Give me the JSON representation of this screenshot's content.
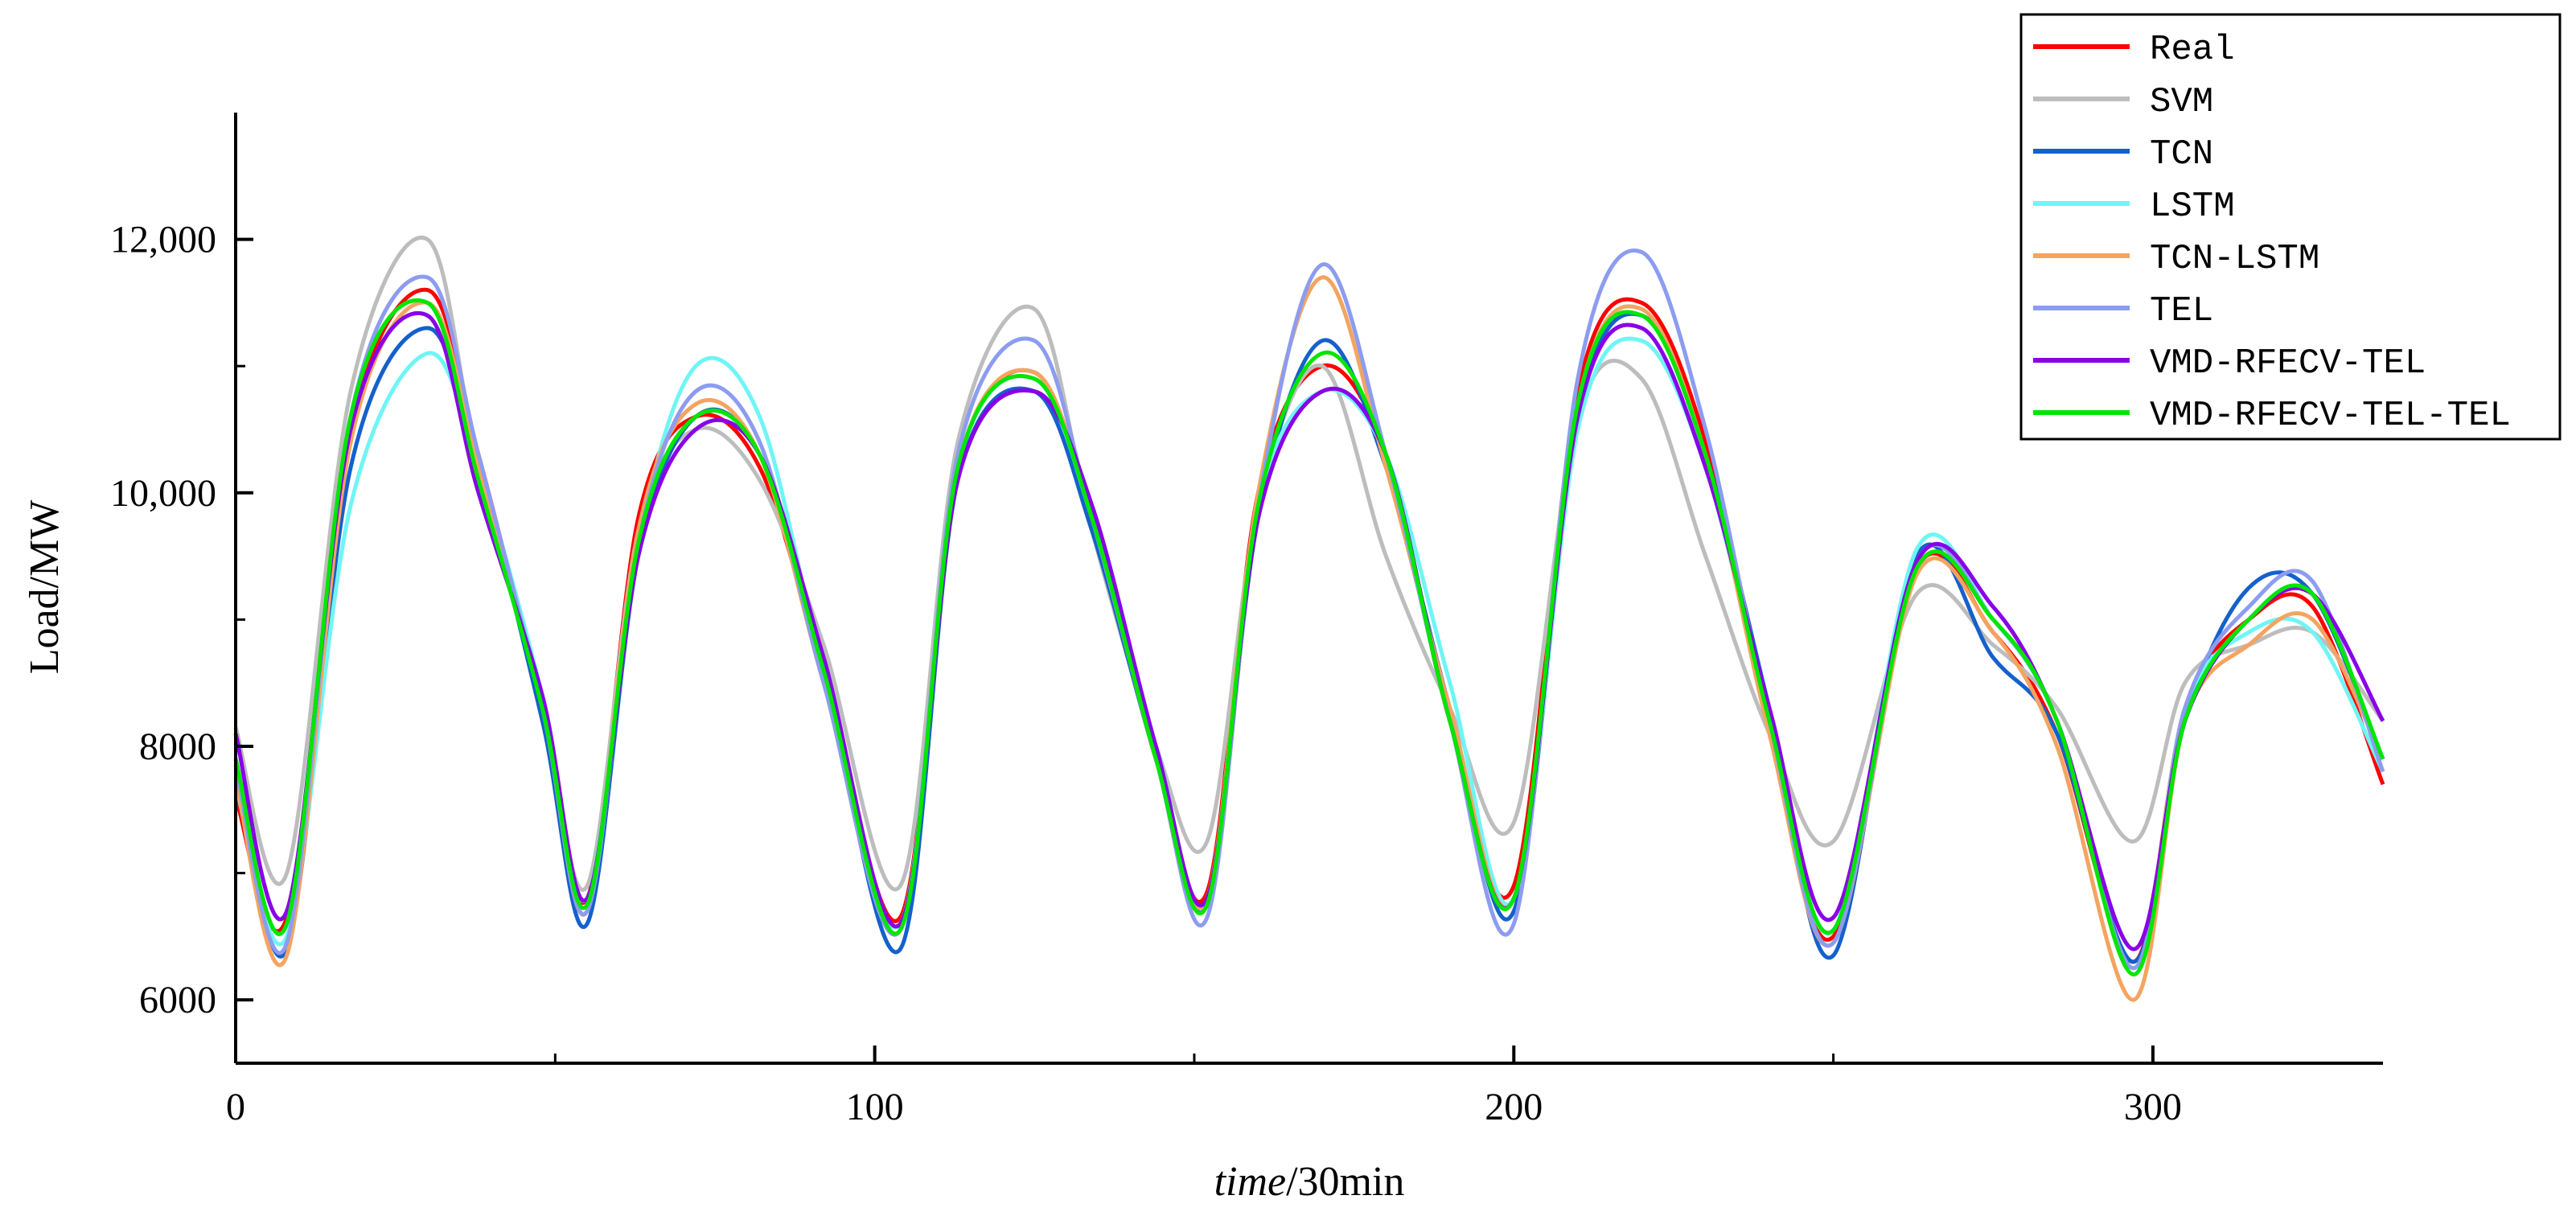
{
  "chart_data": {
    "type": "line",
    "title": "",
    "xlabel_italic": "time",
    "xlabel_rest": "/30min",
    "ylabel": "Load/MW",
    "xlim": [
      0,
      336
    ],
    "ylim": [
      5500,
      13000
    ],
    "x_ticks": [
      0,
      100,
      200,
      300
    ],
    "x_tick_labels": [
      "0",
      "100",
      "200",
      "300"
    ],
    "y_ticks": [
      6000,
      8000,
      10000,
      12000
    ],
    "y_tick_labels": [
      "6000",
      "8000",
      "10,000",
      "12,000"
    ],
    "legend_position": "top-right",
    "x": [
      0,
      8,
      18,
      30,
      38,
      48,
      55,
      63,
      72,
      82,
      92,
      104,
      113,
      125,
      134,
      144,
      152,
      160,
      170,
      180,
      190,
      200,
      210,
      220,
      230,
      240,
      250,
      263,
      275,
      285,
      297,
      305,
      315,
      325,
      336
    ],
    "series": [
      {
        "name": "Real",
        "color": "#ff0000",
        "values": [
          7600,
          6650,
          10500,
          11600,
          10300,
          8300,
          6800,
          9800,
          10600,
          10200,
          8600,
          6650,
          10200,
          10950,
          9800,
          7900,
          6850,
          10000,
          11000,
          10300,
          8200,
          6900,
          10800,
          11500,
          10400,
          8100,
          6500,
          9400,
          8900,
          8100,
          6300,
          8300,
          9000,
          9100,
          7700
        ]
      },
      {
        "name": "SVM",
        "color": "#bdbdbd",
        "values": [
          8150,
          7000,
          10800,
          12000,
          10200,
          8300,
          6900,
          9700,
          10500,
          10100,
          8800,
          6900,
          10400,
          11450,
          9700,
          8000,
          7250,
          9900,
          11000,
          9500,
          8300,
          7400,
          10600,
          10900,
          9500,
          8100,
          7250,
          9200,
          8800,
          8300,
          7250,
          8500,
          8800,
          8900,
          8200
        ]
      },
      {
        "name": "TCN",
        "color": "#1560cc",
        "values": [
          7900,
          6400,
          10200,
          11300,
          10200,
          8200,
          6600,
          9500,
          10600,
          10300,
          8600,
          6400,
          10100,
          10800,
          9700,
          7900,
          6750,
          9800,
          11200,
          10200,
          8300,
          6700,
          10600,
          11400,
          10300,
          8300,
          6350,
          9500,
          8700,
          8100,
          6300,
          8200,
          9250,
          9200,
          7900
        ]
      },
      {
        "name": "LSTM",
        "color": "#6ff5f5",
        "values": [
          7700,
          6500,
          9900,
          11100,
          10200,
          8400,
          6800,
          9600,
          11000,
          10600,
          8600,
          6600,
          10200,
          10900,
          9800,
          8000,
          6800,
          9900,
          10800,
          10300,
          8500,
          6800,
          10500,
          11200,
          10200,
          8200,
          6550,
          9550,
          9000,
          8200,
          6250,
          8300,
          8900,
          8900,
          7800
        ]
      },
      {
        "name": "TCN-LSTM",
        "color": "#f4a460",
        "values": [
          7750,
          6350,
          10400,
          11500,
          10200,
          8300,
          6700,
          9700,
          10700,
          10300,
          8500,
          6550,
          10200,
          10950,
          9800,
          7900,
          6800,
          10000,
          11700,
          10200,
          8300,
          6800,
          10700,
          11450,
          10300,
          8100,
          6450,
          9350,
          8900,
          8000,
          6000,
          8200,
          8800,
          9000,
          7900
        ]
      },
      {
        "name": "TEL",
        "color": "#8c9cf0",
        "values": [
          7850,
          6450,
          10600,
          11700,
          10300,
          8300,
          6700,
          9600,
          10800,
          10400,
          8500,
          6550,
          10300,
          11200,
          9800,
          7900,
          6650,
          9900,
          11800,
          10300,
          8200,
          6600,
          10900,
          11900,
          10500,
          8200,
          6450,
          9450,
          9000,
          8200,
          6250,
          8300,
          9100,
          9300,
          7800
        ]
      },
      {
        "name": "VMD-RFECV-TEL",
        "color": "#8a00e6",
        "values": [
          8100,
          6700,
          10500,
          11400,
          10000,
          8400,
          6800,
          9500,
          10500,
          10300,
          8700,
          6600,
          10100,
          10800,
          9900,
          8000,
          6800,
          9800,
          10800,
          10300,
          8200,
          6800,
          10600,
          11300,
          10200,
          8300,
          6650,
          9450,
          9100,
          8200,
          6400,
          8200,
          9000,
          9200,
          8200
        ]
      },
      {
        "name": "VMD-RFECV-TEL-TEL",
        "color": "#00e600",
        "values": [
          7900,
          6600,
          10600,
          11500,
          10100,
          8300,
          6750,
          9600,
          10600,
          10300,
          8600,
          6550,
          10200,
          10900,
          9800,
          7900,
          6750,
          9900,
          11100,
          10300,
          8200,
          6800,
          10700,
          11400,
          10300,
          8200,
          6550,
          9400,
          9000,
          8200,
          6200,
          8200,
          9000,
          9200,
          7900
        ]
      }
    ]
  }
}
